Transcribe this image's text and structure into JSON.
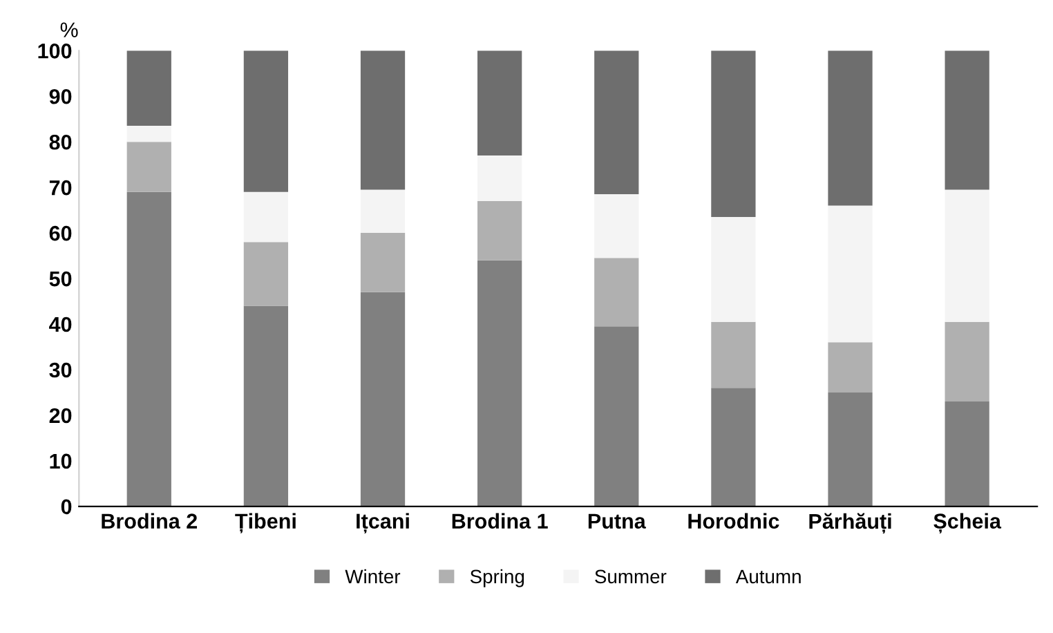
{
  "chart_data": {
    "type": "bar",
    "stacked": true,
    "ylabel": "%",
    "categories": [
      "Brodina 2",
      "Țibeni",
      "Ițcani",
      "Brodina 1",
      "Putna",
      "Horodnic",
      "Părhăuți",
      "Șcheia"
    ],
    "series": [
      {
        "name": "Winter",
        "color": "#808080",
        "values": [
          69,
          44,
          47,
          54,
          39.5,
          26,
          25,
          23
        ]
      },
      {
        "name": "Spring",
        "color": "#b0b0b0",
        "values": [
          11,
          14,
          13,
          13,
          15,
          14.5,
          11,
          17.5
        ]
      },
      {
        "name": "Summer",
        "color": "#f4f4f4",
        "values": [
          3.5,
          11,
          9.5,
          10,
          14,
          23,
          30,
          29
        ]
      },
      {
        "name": "Autumn",
        "color": "#6e6e6e",
        "values": [
          16.5,
          31,
          30.5,
          23,
          31.5,
          36.5,
          34,
          30.5
        ]
      }
    ],
    "ylim": [
      0,
      100
    ],
    "yticks": [
      0,
      10,
      20,
      30,
      40,
      50,
      60,
      70,
      80,
      90,
      100
    ],
    "grid": false,
    "legend": "bottom"
  }
}
